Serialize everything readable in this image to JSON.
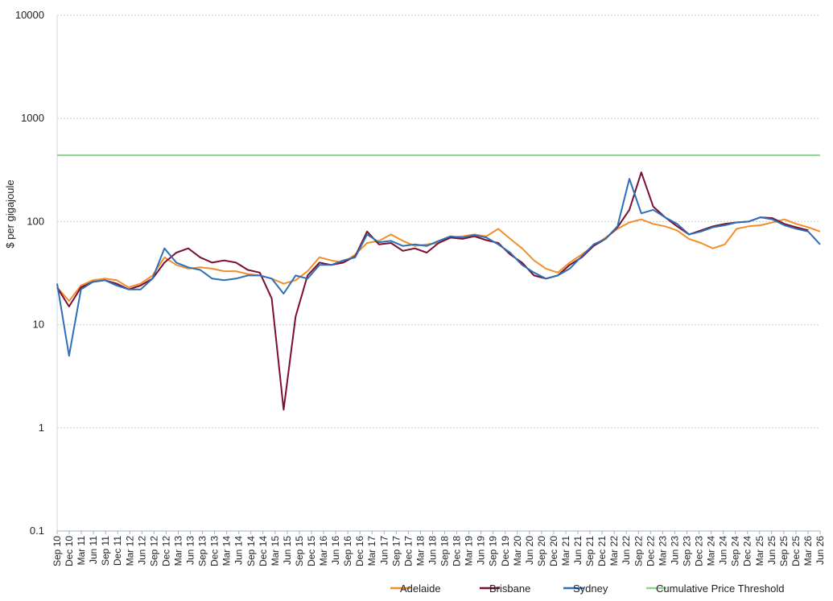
{
  "chart_data": {
    "type": "line",
    "xlabel": "",
    "ylabel": "$ per gigajoule",
    "yscale": "log",
    "ylim": [
      0.1,
      10000
    ],
    "y_ticks": [
      "0.1",
      "1",
      "10",
      "100",
      "1000",
      "10000"
    ],
    "grid": "horizontal dotted",
    "legend_position": "bottom-right",
    "x_ticks": [
      "Sep 10",
      "Dec 10",
      "Mar 11",
      "Jun 11",
      "Sep 11",
      "Dec 11",
      "Mar 12",
      "Jun 12",
      "Sep 12",
      "Dec 12",
      "Mar 13",
      "Jun 13",
      "Sep 13",
      "Dec 13",
      "Mar 14",
      "Jun 14",
      "Sep 14",
      "Dec 14",
      "Mar 15",
      "Jun 15",
      "Sep 15",
      "Dec 15",
      "Mar 16",
      "Jun 16",
      "Sep 16",
      "Dec 16",
      "Mar 17",
      "Jun 17",
      "Sep 17",
      "Dec 17",
      "Mar 18",
      "Jun 18",
      "Sep 18",
      "Dec 18",
      "Mar 19",
      "Jun 19",
      "Sep 19",
      "Dec 19",
      "Mar 20",
      "Jun 20",
      "Sep 20",
      "Dec 20",
      "Mar 21",
      "Jun 21",
      "Sep 21",
      "Dec 21",
      "Mar 22",
      "Jun 22",
      "Sep 22",
      "Dec 22",
      "Mar 23",
      "Jun 23",
      "Sep 23",
      "Dec 23",
      "Mar 24",
      "Jun 24",
      "Sep 24",
      "Dec 24",
      "Mar 25",
      "Jun 25",
      "Sep 25",
      "Dec 25",
      "Mar 26",
      "Jun 26"
    ],
    "series": [
      {
        "name": "Adelaide",
        "color": "#f28e2b",
        "values": [
          23,
          17,
          24,
          27,
          28,
          27,
          23,
          25,
          30,
          45,
          38,
          35,
          36,
          35,
          33,
          33,
          31,
          30,
          28,
          25,
          27,
          33,
          45,
          42,
          40,
          48,
          62,
          65,
          75,
          65,
          58,
          60,
          62,
          70,
          72,
          75,
          72,
          85,
          68,
          55,
          42,
          35,
          32,
          40,
          48,
          58,
          70,
          85,
          98,
          105,
          95,
          90,
          82,
          68,
          62,
          55,
          60,
          85,
          90,
          92,
          98,
          105,
          95,
          88,
          80
        ]
      },
      {
        "name": "Brisbane",
        "color": "#7a0f2e",
        "values": [
          23,
          15,
          23,
          26,
          27,
          25,
          22,
          24,
          28,
          40,
          50,
          55,
          45,
          40,
          42,
          40,
          34,
          32,
          18,
          1.5,
          12,
          30,
          40,
          38,
          40,
          46,
          80,
          60,
          62,
          52,
          55,
          50,
          62,
          70,
          68,
          72,
          66,
          62,
          48,
          40,
          30,
          28,
          30,
          38,
          45,
          58,
          68,
          88,
          130,
          300,
          140,
          110,
          90,
          75,
          82,
          90,
          95,
          98,
          100,
          110,
          108,
          95,
          88,
          82
        ]
      },
      {
        "name": "Sydney",
        "color": "#2e6fb5",
        "values": [
          25,
          5,
          22,
          26,
          27,
          24,
          22,
          22,
          28,
          55,
          40,
          36,
          34,
          28,
          27,
          28,
          30,
          30,
          28,
          20,
          30,
          28,
          38,
          38,
          42,
          45,
          75,
          63,
          65,
          58,
          60,
          58,
          65,
          72,
          70,
          74,
          70,
          60,
          50,
          38,
          32,
          28,
          30,
          35,
          46,
          60,
          68,
          90,
          260,
          120,
          130,
          110,
          95,
          75,
          80,
          88,
          92,
          98,
          100,
          110,
          105,
          92,
          85,
          80,
          60
        ]
      },
      {
        "name": "Cumulative Price Threshold",
        "color": "#8fd18f",
        "values": [
          440,
          440,
          440,
          440,
          440,
          440,
          440,
          440,
          440,
          440,
          440,
          440,
          440,
          440,
          440,
          440,
          440,
          440,
          440,
          440,
          440,
          440,
          440,
          440,
          440,
          440,
          440,
          440,
          440,
          440,
          440,
          440,
          440,
          440,
          440,
          440,
          440,
          440,
          440,
          440,
          440,
          440,
          440,
          440,
          440,
          440,
          440,
          440,
          440,
          440,
          440,
          440,
          440,
          440,
          440,
          440,
          440,
          440,
          440,
          440,
          440,
          440,
          440,
          440,
          440
        ]
      }
    ]
  }
}
